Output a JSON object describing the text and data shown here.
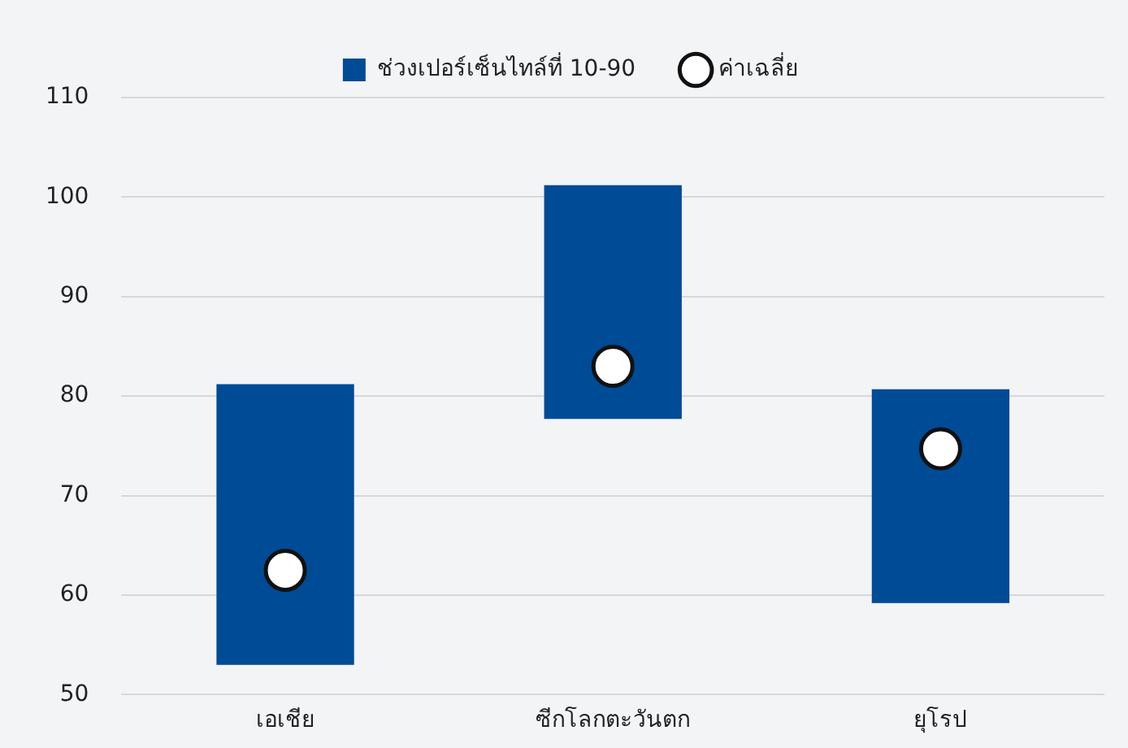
{
  "chart_data": {
    "type": "bar",
    "categories": [
      "เอเชีย",
      "ซีกโลกตะวันตก",
      "ยุโรป"
    ],
    "series": [
      {
        "name": "ช่วงเปอร์เซ็นไทล์ที่ 10-90",
        "color": "#004b96",
        "base": [
          53,
          77.7,
          59.2
        ],
        "values": [
          28.2,
          23.5,
          21.5
        ]
      },
      {
        "name": "ค่าเฉลี่ย",
        "type": "scatter",
        "color": "#ffffff",
        "x": [
          "เอเชีย",
          "ซีกโลกตะวันตก",
          "ยุโรป"
        ],
        "values": [
          62.5,
          83,
          74.7
        ]
      }
    ],
    "ylim": [
      50,
      110
    ],
    "yticks": [
      50,
      60,
      70,
      80,
      90,
      100,
      110
    ],
    "grid": "y",
    "legend": "top",
    "marker": "circle"
  }
}
